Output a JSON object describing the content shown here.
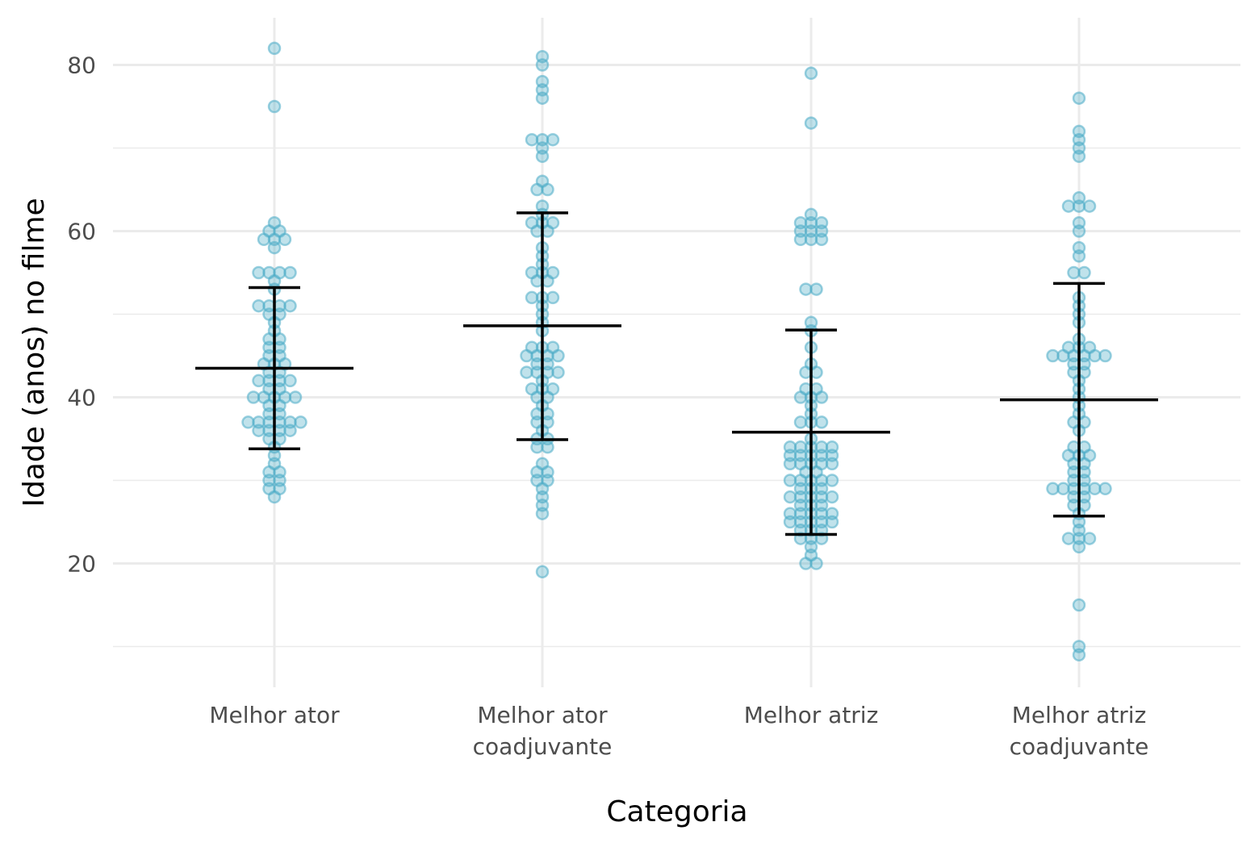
{
  "chart_data": {
    "type": "scatter",
    "xlabel": "Categoria",
    "ylabel": "Idade (anos) no filme",
    "ylim": [
      5.5,
      86.5
    ],
    "y_ticks": [
      20,
      40,
      60,
      80
    ],
    "y_minor_ticks": [
      10,
      30,
      50,
      70
    ],
    "grid": true,
    "point_color": "#4bacc6",
    "stat_color": "#000000",
    "categories": [
      {
        "label_lines": [
          "Melhor ator"
        ],
        "mean": 43.5,
        "lower": 33.8,
        "upper": 53.2,
        "values": [
          82,
          75,
          61,
          60,
          60,
          59,
          59,
          59,
          58,
          55,
          55,
          55,
          55,
          54,
          53,
          51,
          51,
          51,
          51,
          50,
          50,
          49,
          48,
          47,
          47,
          46,
          46,
          45,
          45,
          44,
          44,
          44,
          43,
          43,
          42,
          42,
          42,
          42,
          41,
          41,
          40,
          40,
          40,
          40,
          40,
          39,
          39,
          38,
          38,
          37,
          37,
          37,
          37,
          37,
          37,
          36,
          36,
          36,
          36,
          35,
          35,
          34,
          33,
          32,
          31,
          31,
          30,
          30,
          29,
          29,
          28
        ]
      },
      {
        "label_lines": [
          "Melhor ator",
          "coadjuvante"
        ],
        "mean": 48.6,
        "lower": 34.9,
        "upper": 62.2,
        "values": [
          81,
          80,
          78,
          77,
          76,
          71,
          71,
          71,
          70,
          69,
          66,
          65,
          65,
          63,
          62,
          61,
          61,
          61,
          60,
          60,
          58,
          57,
          56,
          55,
          55,
          55,
          54,
          54,
          52,
          52,
          52,
          51,
          50,
          49,
          48,
          46,
          46,
          46,
          45,
          45,
          45,
          45,
          44,
          44,
          43,
          43,
          43,
          43,
          42,
          41,
          41,
          41,
          40,
          40,
          39,
          38,
          38,
          37,
          37,
          36,
          35,
          35,
          34,
          34,
          32,
          31,
          31,
          30,
          30,
          29,
          28,
          27,
          26,
          19
        ]
      },
      {
        "label_lines": [
          "Melhor atriz"
        ],
        "mean": 35.8,
        "lower": 23.5,
        "upper": 48.1,
        "values": [
          79,
          73,
          62,
          61,
          61,
          61,
          60,
          60,
          60,
          59,
          59,
          59,
          53,
          53,
          49,
          48,
          46,
          44,
          43,
          43,
          41,
          41,
          40,
          40,
          40,
          39,
          38,
          37,
          37,
          37,
          35,
          34,
          34,
          34,
          34,
          34,
          33,
          33,
          33,
          33,
          33,
          32,
          32,
          32,
          32,
          32,
          31,
          31,
          30,
          30,
          30,
          30,
          30,
          29,
          29,
          29,
          28,
          28,
          28,
          28,
          28,
          27,
          27,
          27,
          26,
          26,
          26,
          26,
          26,
          25,
          25,
          25,
          25,
          25,
          24,
          24,
          24,
          23,
          23,
          23,
          22,
          21,
          20,
          20
        ]
      },
      {
        "label_lines": [
          "Melhor atriz",
          "coadjuvante"
        ],
        "mean": 39.7,
        "lower": 25.7,
        "upper": 53.7,
        "values": [
          76,
          72,
          71,
          70,
          69,
          64,
          63,
          63,
          63,
          61,
          60,
          58,
          57,
          55,
          55,
          52,
          51,
          50,
          49,
          47,
          46,
          46,
          46,
          45,
          45,
          45,
          45,
          45,
          45,
          44,
          44,
          43,
          43,
          42,
          41,
          40,
          39,
          38,
          37,
          37,
          36,
          34,
          34,
          33,
          33,
          33,
          32,
          32,
          31,
          31,
          30,
          30,
          29,
          29,
          29,
          29,
          29,
          29,
          28,
          28,
          27,
          27,
          26,
          25,
          24,
          23,
          23,
          23,
          22,
          15,
          10,
          9
        ]
      }
    ]
  }
}
